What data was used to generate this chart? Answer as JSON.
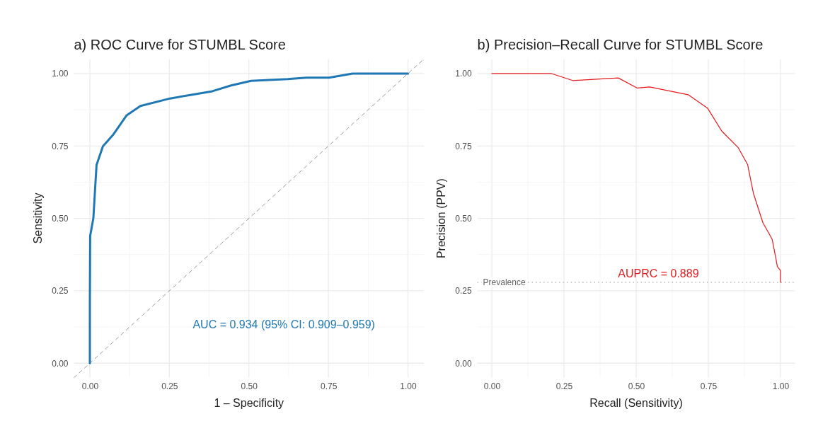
{
  "chart_data": [
    {
      "type": "line",
      "title": "a) ROC Curve for STUMBL Score",
      "xlabel": "1 – Specificity",
      "ylabel": "Sensitivity",
      "xlim": [
        -0.05,
        1.05
      ],
      "ylim": [
        -0.05,
        1.05
      ],
      "xticks": [
        {
          "value": 0,
          "label": "0.00"
        },
        {
          "value": 0.25,
          "label": "0.25"
        },
        {
          "value": 0.5,
          "label": "0.50"
        },
        {
          "value": 0.75,
          "label": "0.75"
        },
        {
          "value": 1,
          "label": "1.00"
        }
      ],
      "yticks": [
        {
          "value": 0,
          "label": "0.00"
        },
        {
          "value": 0.25,
          "label": "0.25"
        },
        {
          "value": 0.5,
          "label": "0.50"
        },
        {
          "value": 0.75,
          "label": "0.75"
        },
        {
          "value": 1,
          "label": "1.00"
        }
      ],
      "grid": true,
      "series": [
        {
          "color": "#999999",
          "line_style": "dashed",
          "x": [
            -0.05,
            1.05
          ],
          "values": [
            -0.05,
            1.05
          ]
        },
        {
          "color": "#1f78b4",
          "line_style": "solid",
          "x": [
            0,
            0,
            0.001,
            0.011,
            0.013,
            0.021,
            0.041,
            0.074,
            0.115,
            0.159,
            0.252,
            0.326,
            0.385,
            0.444,
            0.507,
            0.622,
            0.681,
            0.752,
            0.826,
            1
          ],
          "values": [
            0,
            0.204,
            0.44,
            0.5,
            0.537,
            0.684,
            0.749,
            0.79,
            0.855,
            0.888,
            0.914,
            0.928,
            0.939,
            0.959,
            0.975,
            0.981,
            0.986,
            0.986,
            1,
            1
          ]
        }
      ],
      "annotations": [
        "AUC = 0.934 (95% CI: 0.909–0.959)"
      ]
    },
    {
      "type": "line",
      "title": "b) Precision–Recall Curve for STUMBL Score",
      "xlabel": "Recall (Sensitivity)",
      "ylabel": "Precision (PPV)",
      "xlim": [
        -0.05,
        1.05
      ],
      "ylim": [
        -0.05,
        1.05
      ],
      "xticks": [
        {
          "value": 0,
          "label": "0.00"
        },
        {
          "value": 0.25,
          "label": "0.25"
        },
        {
          "value": 0.5,
          "label": "0.50"
        },
        {
          "value": 0.75,
          "label": "0.75"
        },
        {
          "value": 1,
          "label": "1.00"
        }
      ],
      "yticks": [
        {
          "value": 0,
          "label": "0.00"
        },
        {
          "value": 0.25,
          "label": "0.25"
        },
        {
          "value": 0.5,
          "label": "0.50"
        },
        {
          "value": 0.75,
          "label": "0.75"
        },
        {
          "value": 1,
          "label": "1.00"
        }
      ],
      "grid": true,
      "series": [
        {
          "color": "#e41a1c",
          "line_style": "solid",
          "x": [
            0,
            0.207,
            0.28,
            0.438,
            0.504,
            0.547,
            0.68,
            0.747,
            0.796,
            0.853,
            0.886,
            0.906,
            0.939,
            0.971,
            0.984,
            0.989,
            1,
            1
          ],
          "values": [
            1,
            1,
            0.976,
            0.985,
            0.95,
            0.954,
            0.927,
            0.881,
            0.802,
            0.745,
            0.686,
            0.587,
            0.485,
            0.428,
            0.362,
            0.334,
            0.32,
            0.279
          ]
        }
      ],
      "ref_lines": [
        {
          "axis": "y",
          "value": 0.279,
          "label": "Prevalence",
          "color": "#999999",
          "line_style": "dotted"
        }
      ],
      "annotations": [
        "AUPRC = 0.889"
      ]
    }
  ]
}
